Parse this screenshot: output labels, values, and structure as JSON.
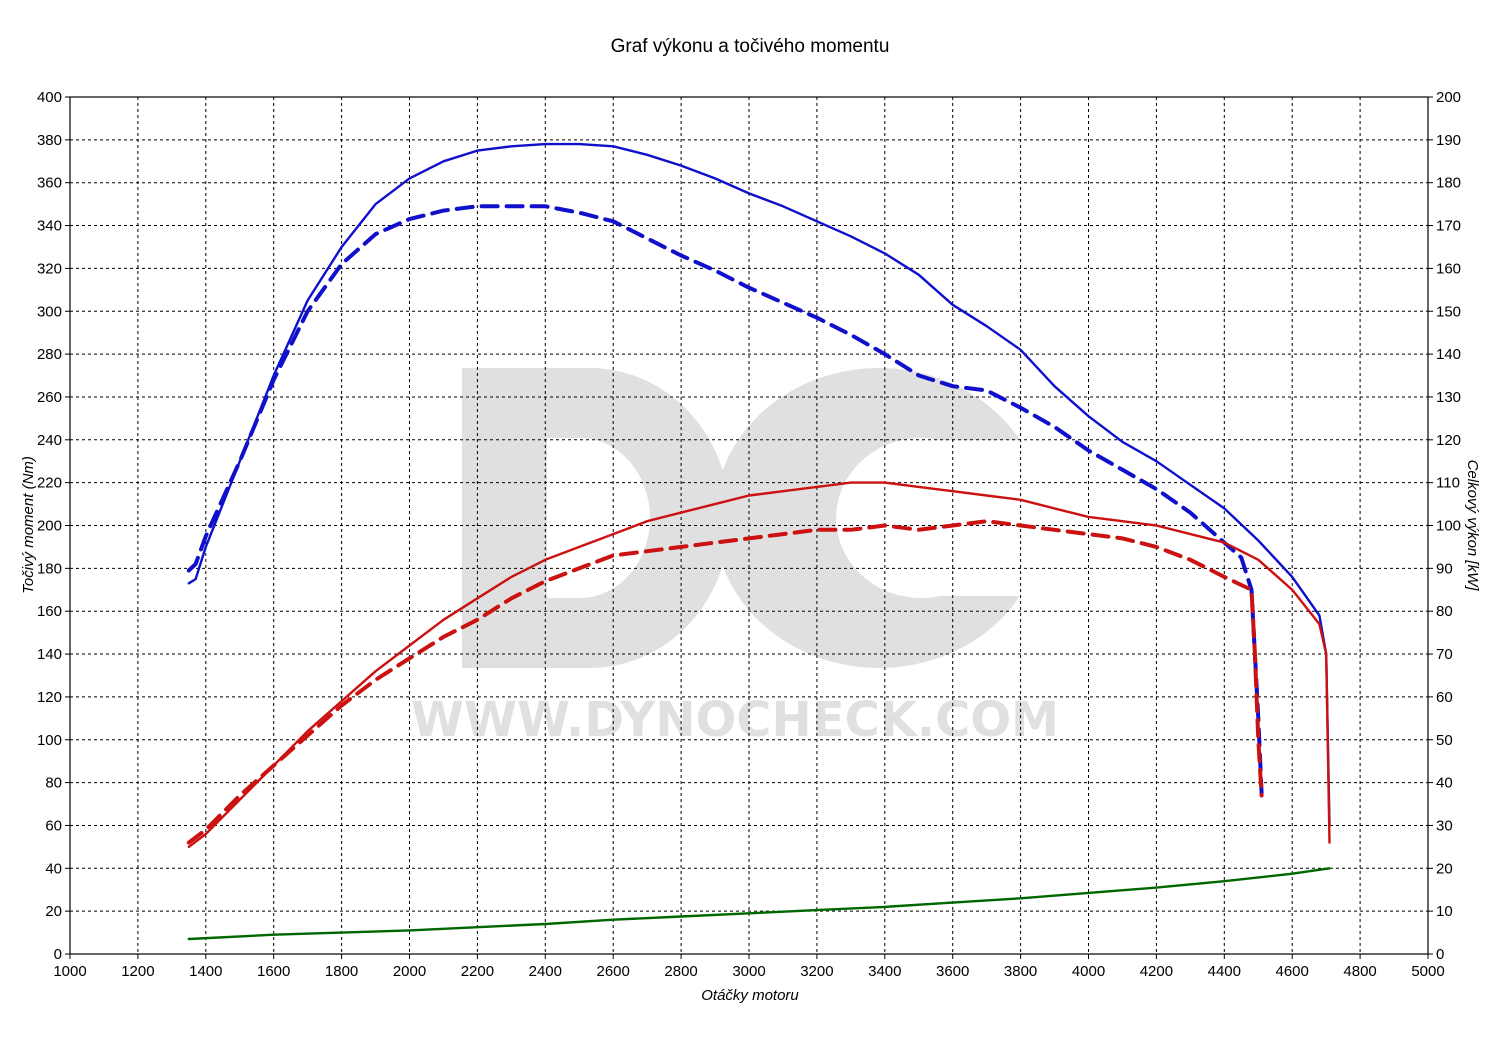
{
  "chart_data": {
    "type": "line",
    "title": "Graf výkonu a točivého momentu",
    "xlabel": "Otáčky motoru",
    "ylabel_left": "Točivý moment (Nm)",
    "ylabel_right": "Celkový výkon [kW]",
    "xlim": [
      1000,
      5000
    ],
    "ylim_left": [
      0,
      400
    ],
    "ylim_right": [
      0,
      200
    ],
    "grid": true,
    "x_ticks": [
      "1000",
      "1200",
      "1400",
      "1600",
      "1800",
      "2000",
      "2200",
      "2400",
      "2600",
      "2800",
      "3000",
      "3200",
      "3400",
      "3600",
      "3800",
      "4000",
      "4200",
      "4400",
      "4600",
      "4800",
      "5000"
    ],
    "y_left_ticks": [
      "0",
      "20",
      "40",
      "60",
      "80",
      "100",
      "120",
      "140",
      "160",
      "180",
      "200",
      "220",
      "240",
      "260",
      "280",
      "300",
      "320",
      "340",
      "360",
      "380",
      "400"
    ],
    "y_right_ticks": [
      "0",
      "10",
      "20",
      "30",
      "40",
      "50",
      "60",
      "70",
      "80",
      "90",
      "100",
      "110",
      "120",
      "130",
      "140",
      "150",
      "160",
      "170",
      "180",
      "190",
      "200"
    ],
    "watermark": {
      "logo": "DC",
      "text": "WWW.DYNOCHECK.COM",
      "color": "#e0e0e0"
    },
    "series": [
      {
        "axis": "left",
        "color": "#1010cc",
        "dash": "solid",
        "points": [
          [
            1350,
            173
          ],
          [
            1370,
            175
          ],
          [
            1400,
            190
          ],
          [
            1500,
            230
          ],
          [
            1600,
            270
          ],
          [
            1700,
            305
          ],
          [
            1800,
            330
          ],
          [
            1900,
            350
          ],
          [
            2000,
            362
          ],
          [
            2100,
            370
          ],
          [
            2200,
            375
          ],
          [
            2300,
            377
          ],
          [
            2400,
            378
          ],
          [
            2500,
            378
          ],
          [
            2600,
            377
          ],
          [
            2700,
            373
          ],
          [
            2800,
            368
          ],
          [
            2900,
            362
          ],
          [
            3000,
            355
          ],
          [
            3100,
            349
          ],
          [
            3200,
            342
          ],
          [
            3300,
            335
          ],
          [
            3400,
            327
          ],
          [
            3500,
            317
          ],
          [
            3600,
            303
          ],
          [
            3700,
            293
          ],
          [
            3800,
            282
          ],
          [
            3900,
            265
          ],
          [
            4000,
            251
          ],
          [
            4100,
            239
          ],
          [
            4200,
            230
          ],
          [
            4300,
            219
          ],
          [
            4400,
            208
          ],
          [
            4500,
            193
          ],
          [
            4600,
            176
          ],
          [
            4680,
            158
          ],
          [
            4700,
            140
          ],
          [
            4710,
            60
          ]
        ]
      },
      {
        "axis": "left",
        "color": "#1010cc",
        "dash": "dashed",
        "points": [
          [
            1350,
            179
          ],
          [
            1370,
            182
          ],
          [
            1400,
            195
          ],
          [
            1500,
            230
          ],
          [
            1600,
            268
          ],
          [
            1700,
            300
          ],
          [
            1800,
            322
          ],
          [
            1900,
            336
          ],
          [
            2000,
            343
          ],
          [
            2100,
            347
          ],
          [
            2200,
            349
          ],
          [
            2300,
            349
          ],
          [
            2400,
            349
          ],
          [
            2500,
            346
          ],
          [
            2600,
            342
          ],
          [
            2700,
            334
          ],
          [
            2800,
            326
          ],
          [
            2900,
            319
          ],
          [
            3000,
            311
          ],
          [
            3100,
            304
          ],
          [
            3200,
            297
          ],
          [
            3300,
            289
          ],
          [
            3400,
            280
          ],
          [
            3500,
            270
          ],
          [
            3600,
            265
          ],
          [
            3700,
            263
          ],
          [
            3800,
            255
          ],
          [
            3900,
            246
          ],
          [
            4000,
            235
          ],
          [
            4100,
            226
          ],
          [
            4200,
            217
          ],
          [
            4300,
            206
          ],
          [
            4400,
            192
          ],
          [
            4450,
            185
          ],
          [
            4480,
            170
          ],
          [
            4490,
            140
          ],
          [
            4500,
            110
          ],
          [
            4510,
            75
          ]
        ]
      },
      {
        "axis": "right",
        "color": "#cc1111",
        "dash": "solid",
        "points": [
          [
            1350,
            25
          ],
          [
            1400,
            28
          ],
          [
            1500,
            36
          ],
          [
            1600,
            44
          ],
          [
            1700,
            52
          ],
          [
            1800,
            59
          ],
          [
            1900,
            66
          ],
          [
            2000,
            72
          ],
          [
            2100,
            78
          ],
          [
            2200,
            83
          ],
          [
            2300,
            88
          ],
          [
            2400,
            92
          ],
          [
            2500,
            95
          ],
          [
            2600,
            98
          ],
          [
            2700,
            101
          ],
          [
            2800,
            103
          ],
          [
            2900,
            105
          ],
          [
            3000,
            107
          ],
          [
            3100,
            108
          ],
          [
            3200,
            109
          ],
          [
            3300,
            110
          ],
          [
            3400,
            110
          ],
          [
            3500,
            109
          ],
          [
            3600,
            108
          ],
          [
            3700,
            107
          ],
          [
            3800,
            106
          ],
          [
            3900,
            104
          ],
          [
            4000,
            102
          ],
          [
            4100,
            101
          ],
          [
            4200,
            100
          ],
          [
            4300,
            98
          ],
          [
            4400,
            96
          ],
          [
            4500,
            92
          ],
          [
            4600,
            85
          ],
          [
            4680,
            77
          ],
          [
            4700,
            70
          ],
          [
            4710,
            26
          ]
        ]
      },
      {
        "axis": "right",
        "color": "#cc1111",
        "dash": "dashed",
        "points": [
          [
            1350,
            26
          ],
          [
            1400,
            29
          ],
          [
            1500,
            37
          ],
          [
            1600,
            44
          ],
          [
            1700,
            51
          ],
          [
            1800,
            58
          ],
          [
            1900,
            64
          ],
          [
            2000,
            69
          ],
          [
            2100,
            74
          ],
          [
            2200,
            78
          ],
          [
            2300,
            83
          ],
          [
            2400,
            87
          ],
          [
            2500,
            90
          ],
          [
            2600,
            93
          ],
          [
            2700,
            94
          ],
          [
            2800,
            95
          ],
          [
            2900,
            96
          ],
          [
            3000,
            97
          ],
          [
            3100,
            98
          ],
          [
            3200,
            99
          ],
          [
            3300,
            99
          ],
          [
            3400,
            100
          ],
          [
            3500,
            99
          ],
          [
            3600,
            100
          ],
          [
            3700,
            101
          ],
          [
            3800,
            100
          ],
          [
            3900,
            99
          ],
          [
            4000,
            98
          ],
          [
            4100,
            97
          ],
          [
            4200,
            95
          ],
          [
            4300,
            92
          ],
          [
            4400,
            88
          ],
          [
            4480,
            85
          ],
          [
            4490,
            70
          ],
          [
            4500,
            50
          ],
          [
            4510,
            37
          ]
        ]
      },
      {
        "axis": "left",
        "color": "#006600",
        "dash": "solid",
        "points": [
          [
            1350,
            7
          ],
          [
            1600,
            9
          ],
          [
            1800,
            10
          ],
          [
            2000,
            11
          ],
          [
            2200,
            12.5
          ],
          [
            2400,
            14
          ],
          [
            2600,
            16
          ],
          [
            2800,
            17.5
          ],
          [
            3000,
            19
          ],
          [
            3200,
            20.5
          ],
          [
            3400,
            22
          ],
          [
            3600,
            24
          ],
          [
            3800,
            26
          ],
          [
            4000,
            28.5
          ],
          [
            4200,
            31
          ],
          [
            4400,
            34
          ],
          [
            4600,
            37.5
          ],
          [
            4710,
            40
          ]
        ]
      }
    ]
  }
}
